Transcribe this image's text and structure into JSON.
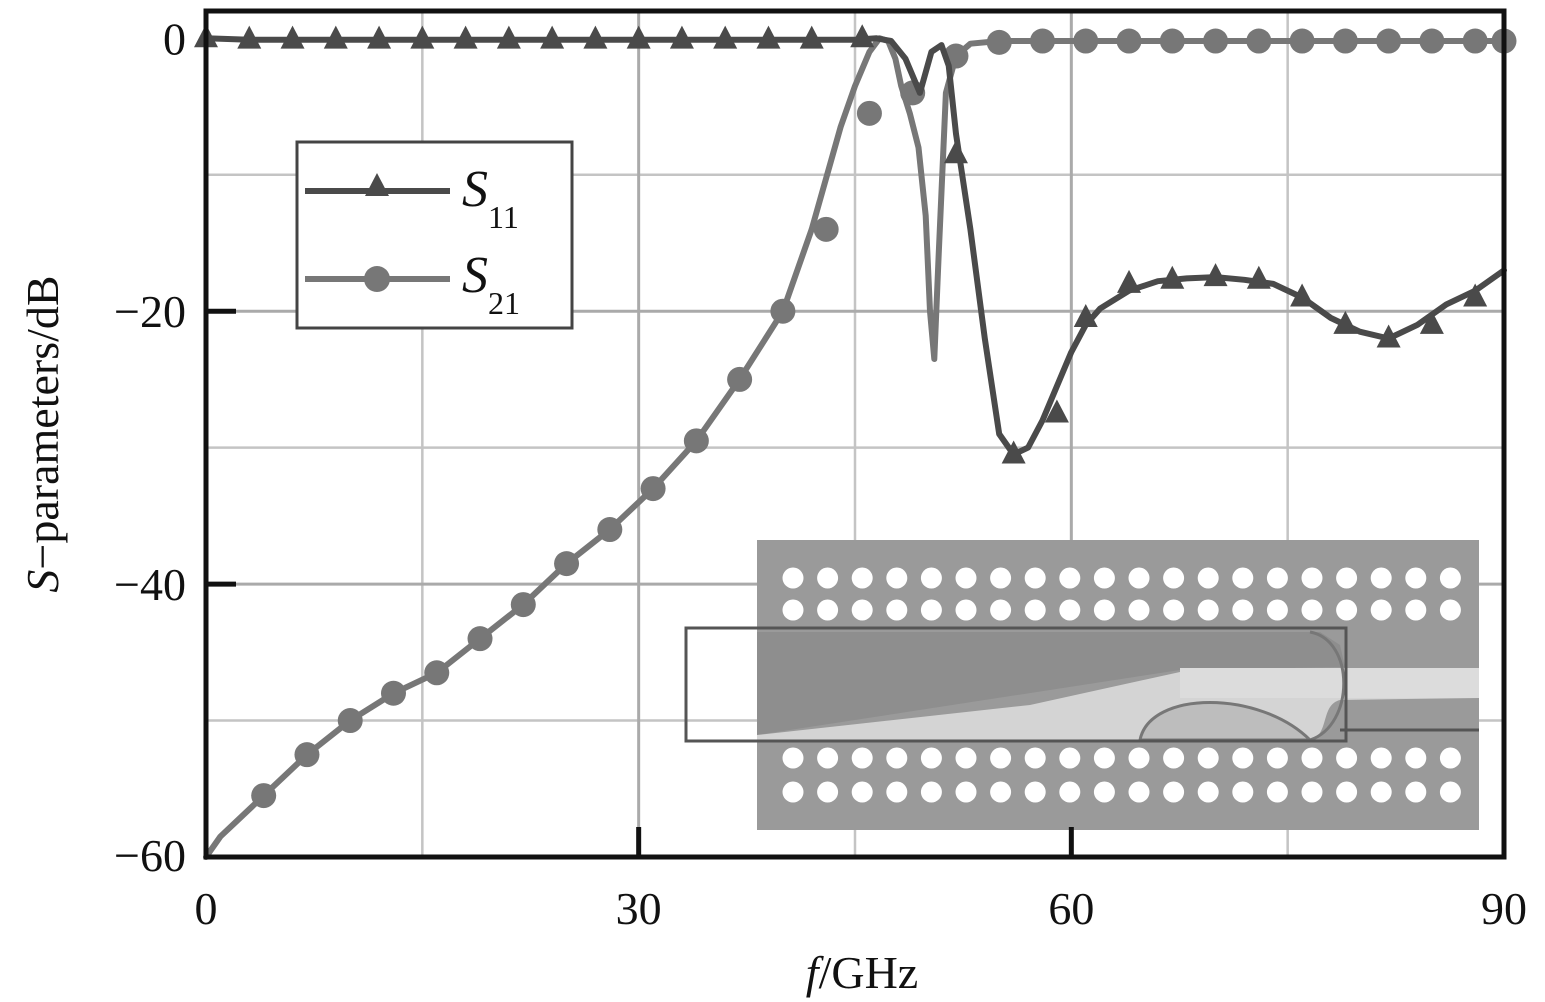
{
  "chart_data": {
    "type": "line",
    "xlabel_italic": "f",
    "xlabel_rest": "/GHz",
    "ylabel_italic": "S",
    "ylabel_rest": "−parameters/dB",
    "xlim": [
      0,
      90
    ],
    "ylim": [
      -60,
      2
    ],
    "xticks": [
      0,
      30,
      60,
      90
    ],
    "xtick_labels": [
      "0",
      "30",
      "60",
      "90"
    ],
    "yticks": [
      0,
      -20,
      -40,
      -60
    ],
    "ytick_labels": [
      "0",
      "−20",
      "−40",
      "−60"
    ],
    "grid": true,
    "legend_position": "upper-left",
    "series": [
      {
        "name": "S11",
        "label_main": "S",
        "label_sub": "11",
        "marker": "triangle",
        "color": "#4a4a4a",
        "x": [
          0,
          3,
          6,
          9,
          12,
          15,
          18,
          21,
          24,
          27,
          30,
          33,
          36,
          39,
          42,
          45,
          46.5,
          47.5,
          48.5,
          49.5,
          50.3,
          51,
          51.5,
          52,
          53,
          54,
          55,
          56,
          57,
          58,
          59,
          60,
          61,
          62,
          64,
          66,
          68,
          70,
          72,
          74,
          76,
          78,
          80,
          82,
          84,
          86,
          88,
          90
        ],
        "y": [
          0,
          -0.1,
          -0.1,
          -0.1,
          -0.1,
          -0.1,
          -0.1,
          -0.1,
          -0.1,
          -0.1,
          -0.1,
          -0.1,
          -0.1,
          -0.1,
          -0.1,
          -0.1,
          0,
          -0.2,
          -1.5,
          -4,
          -1,
          -0.5,
          -2,
          -7,
          -14,
          -22,
          -29,
          -30.5,
          -30,
          -28,
          -25.5,
          -23,
          -21,
          -19.8,
          -18.5,
          -17.8,
          -17.6,
          -17.5,
          -17.7,
          -18,
          -19,
          -20.5,
          -21.5,
          -22,
          -21,
          -19.5,
          -18.5,
          -17
        ],
        "markers_x": [
          0,
          3,
          6,
          9,
          12,
          15,
          18,
          21,
          24,
          27,
          30,
          33,
          36,
          39,
          42,
          45.5,
          52,
          56,
          59,
          61,
          64,
          67,
          70,
          73,
          76,
          79,
          82,
          85,
          88
        ],
        "markers_y": [
          0,
          -0.1,
          -0.1,
          -0.1,
          -0.1,
          -0.1,
          -0.1,
          -0.1,
          -0.1,
          -0.1,
          -0.1,
          -0.1,
          -0.1,
          -0.1,
          -0.1,
          0,
          -8.5,
          -30.5,
          -27.5,
          -20.5,
          -18,
          -17.7,
          -17.5,
          -17.7,
          -19,
          -21,
          -22,
          -21,
          -19
        ]
      },
      {
        "name": "S21",
        "label_main": "S",
        "label_sub": "21",
        "marker": "circle",
        "color": "#777777",
        "x": [
          0,
          1,
          2,
          4,
          7,
          10,
          13,
          16,
          19,
          22,
          25,
          28,
          31,
          34,
          37,
          40,
          42,
          44,
          45,
          46,
          46.7,
          47.3,
          47.8,
          48.2,
          48.8,
          49.4,
          49.9,
          50.2,
          50.5,
          50.8,
          51.3,
          52,
          53,
          55,
          58,
          62,
          66,
          70,
          74,
          78,
          82,
          86,
          90
        ],
        "y": [
          -60,
          -58.5,
          -57.5,
          -55.5,
          -52.5,
          -50,
          -48,
          -46.5,
          -44,
          -41.5,
          -38.5,
          -36,
          -33,
          -29.5,
          -25,
          -20,
          -14,
          -6.5,
          -3.5,
          -1,
          0,
          -0.2,
          -1.5,
          -3.5,
          -5.5,
          -8,
          -13,
          -20,
          -23.5,
          -16,
          -4,
          -1.3,
          -0.4,
          -0.2,
          -0.2,
          -0.2,
          -0.2,
          -0.2,
          -0.2,
          -0.2,
          -0.2,
          -0.2,
          -0.2
        ],
        "markers_x": [
          4,
          7,
          10,
          13,
          16,
          19,
          22,
          25,
          28,
          31,
          34,
          37,
          40,
          43,
          46,
          49,
          52,
          55,
          58,
          61,
          64,
          67,
          70,
          73,
          76,
          79,
          82,
          85,
          88,
          90
        ],
        "markers_y": [
          -55.5,
          -52.5,
          -50,
          -48,
          -46.5,
          -44,
          -41.5,
          -38.5,
          -36,
          -33,
          -29.5,
          -25,
          -20,
          -14,
          -5.5,
          -4,
          -1.3,
          -0.3,
          -0.2,
          -0.2,
          -0.2,
          -0.2,
          -0.2,
          -0.2,
          -0.2,
          -0.2,
          -0.2,
          -0.2,
          -0.2,
          -0.2
        ]
      }
    ]
  }
}
